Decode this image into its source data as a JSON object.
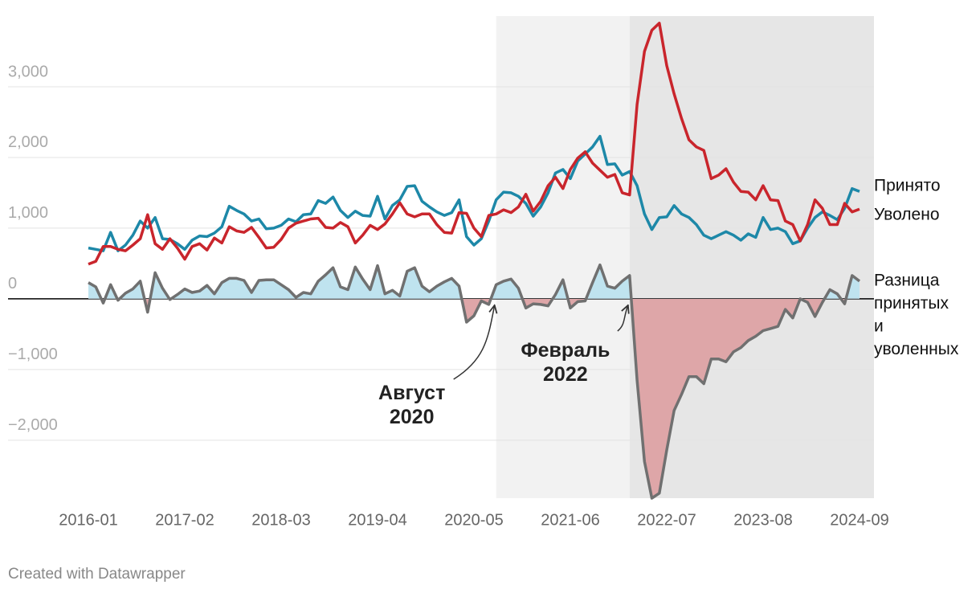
{
  "chart_data": {
    "type": "line",
    "x": [
      "2016-01",
      "2016-02",
      "2016-03",
      "2016-04",
      "2016-05",
      "2016-06",
      "2016-07",
      "2016-08",
      "2016-09",
      "2016-10",
      "2016-11",
      "2016-12",
      "2017-01",
      "2017-02",
      "2017-03",
      "2017-04",
      "2017-05",
      "2017-06",
      "2017-07",
      "2017-08",
      "2017-09",
      "2017-10",
      "2017-11",
      "2017-12",
      "2018-01",
      "2018-02",
      "2018-03",
      "2018-04",
      "2018-05",
      "2018-06",
      "2018-07",
      "2018-08",
      "2018-09",
      "2018-10",
      "2018-11",
      "2018-12",
      "2019-01",
      "2019-02",
      "2019-03",
      "2019-04",
      "2019-05",
      "2019-06",
      "2019-07",
      "2019-08",
      "2019-09",
      "2019-10",
      "2019-11",
      "2019-12",
      "2020-01",
      "2020-02",
      "2020-03",
      "2020-04",
      "2020-05",
      "2020-06",
      "2020-07",
      "2020-08",
      "2020-09",
      "2020-10",
      "2020-11",
      "2020-12",
      "2021-01",
      "2021-02",
      "2021-03",
      "2021-04",
      "2021-05",
      "2021-06",
      "2021-07",
      "2021-08",
      "2021-09",
      "2021-10",
      "2021-11",
      "2021-12",
      "2022-01",
      "2022-02",
      "2022-03",
      "2022-04",
      "2022-05",
      "2022-06",
      "2022-07",
      "2022-08",
      "2022-09",
      "2022-10",
      "2022-11",
      "2022-12",
      "2023-01",
      "2023-02",
      "2023-03",
      "2023-04",
      "2023-05",
      "2023-06",
      "2023-07",
      "2023-08",
      "2023-09",
      "2023-10",
      "2023-11",
      "2023-12",
      "2024-01",
      "2024-02",
      "2024-03",
      "2024-04",
      "2024-05",
      "2024-06",
      "2024-07",
      "2024-08",
      "2024-09"
    ],
    "series": [
      {
        "name": "Принято",
        "color": "#1d88a8",
        "values": [
          720,
          700,
          680,
          940,
          680,
          760,
          900,
          1100,
          1000,
          1150,
          850,
          840,
          780,
          700,
          830,
          890,
          880,
          930,
          1020,
          1310,
          1250,
          1200,
          1100,
          1130,
          990,
          1000,
          1040,
          1130,
          1090,
          1190,
          1200,
          1390,
          1350,
          1440,
          1250,
          1150,
          1240,
          1180,
          1170,
          1450,
          1130,
          1320,
          1400,
          1590,
          1600,
          1380,
          1300,
          1230,
          1180,
          1220,
          1400,
          880,
          760,
          850,
          1100,
          1400,
          1510,
          1500,
          1450,
          1350,
          1170,
          1300,
          1500,
          1780,
          1830,
          1700,
          1950,
          2050,
          2150,
          2300,
          1900,
          1910,
          1750,
          1800,
          1600,
          1200,
          980,
          1150,
          1160,
          1320,
          1200,
          1150,
          1050,
          900,
          850,
          900,
          950,
          900,
          830,
          920,
          870,
          1150,
          980,
          1000,
          950,
          780,
          820,
          1000,
          1150,
          1230,
          1180,
          1120,
          1280,
          1560,
          1520
        ]
      },
      {
        "name": "Уволено",
        "color": "#c9252c",
        "values": [
          490,
          530,
          740,
          740,
          700,
          680,
          760,
          850,
          1190,
          780,
          700,
          850,
          720,
          560,
          740,
          780,
          690,
          860,
          790,
          1020,
          960,
          940,
          1010,
          870,
          720,
          730,
          840,
          1000,
          1070,
          1100,
          1130,
          1140,
          1010,
          1000,
          1080,
          1020,
          790,
          900,
          1040,
          980,
          1060,
          1200,
          1360,
          1200,
          1160,
          1200,
          1200,
          1050,
          940,
          930,
          1220,
          1210,
          1000,
          880,
          1180,
          1200,
          1260,
          1220,
          1300,
          1480,
          1240,
          1380,
          1600,
          1720,
          1560,
          1830,
          1990,
          2080,
          1920,
          1820,
          1720,
          1760,
          1500,
          1470,
          2750,
          3500,
          3800,
          3900,
          3300,
          2900,
          2550,
          2250,
          2150,
          2100,
          1700,
          1750,
          1840,
          1650,
          1520,
          1510,
          1400,
          1600,
          1400,
          1390,
          1100,
          1050,
          820,
          1050,
          1400,
          1280,
          1050,
          1050,
          1350,
          1230,
          1270
        ]
      },
      {
        "name": [
          "Разница",
          "принятых",
          "и",
          "уволенных"
        ],
        "color": "#707070",
        "fill_positive": "#bfe3ef",
        "fill_negative": "#dea6a8",
        "values": [
          230,
          170,
          -60,
          200,
          -20,
          80,
          140,
          250,
          -190,
          370,
          150,
          -10,
          60,
          140,
          90,
          110,
          190,
          70,
          230,
          290,
          290,
          260,
          90,
          260,
          270,
          270,
          200,
          130,
          20,
          90,
          70,
          250,
          340,
          440,
          170,
          130,
          450,
          280,
          130,
          470,
          70,
          120,
          40,
          390,
          440,
          180,
          100,
          180,
          240,
          290,
          180,
          -330,
          -240,
          -30,
          -80,
          200,
          250,
          280,
          150,
          -130,
          -70,
          -80,
          -100,
          60,
          270,
          -130,
          -40,
          -30,
          230,
          480,
          180,
          150,
          250,
          330,
          -1150,
          -2300,
          -2820,
          -2750,
          -2140,
          -1580,
          -1350,
          -1100,
          -1100,
          -1200,
          -850,
          -850,
          -890,
          -750,
          -690,
          -590,
          -530,
          -450,
          -420,
          -390,
          -150,
          -270,
          0,
          -50,
          -250,
          -50,
          130,
          70,
          -70,
          330,
          250
        ]
      }
    ],
    "xticks": [
      "2016-01",
      "2017-02",
      "2018-03",
      "2019-04",
      "2020-05",
      "2021-06",
      "2022-07",
      "2023-08",
      "2024-09"
    ],
    "ylim": [
      -2820,
      4000
    ],
    "yticks": [
      {
        "value": -2000,
        "label": "−2,000"
      },
      {
        "value": -1000,
        "label": "−1,000"
      },
      0,
      {
        "value": 1000,
        "label": "1,000"
      },
      {
        "value": 2000,
        "label": "2,000"
      },
      {
        "value": 3000,
        "label": "3,000"
      }
    ],
    "grid": true,
    "annotations": [
      {
        "lines": [
          "Август",
          "2020"
        ],
        "x": "2020-08",
        "shade": "#f2f2f2"
      },
      {
        "lines": [
          "Февраль",
          "2022"
        ],
        "x": "2022-02",
        "shade": "#e6e6e6"
      }
    ],
    "credit": "Created with Datawrapper"
  }
}
